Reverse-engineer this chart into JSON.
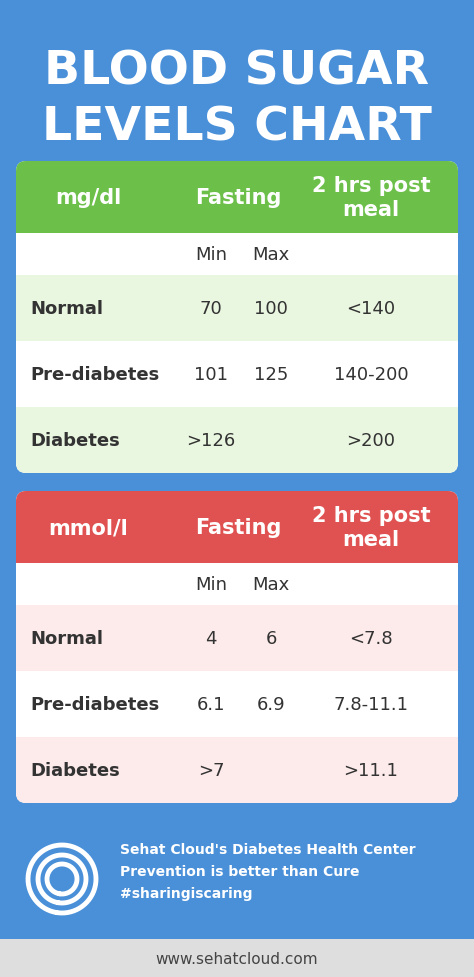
{
  "bg_color": "#4A90D9",
  "title_line1": "BLOOD SUGAR",
  "title_line2": "LEVELS CHART",
  "title_color": "#FFFFFF",
  "title_fontsize": 34,
  "table1_header_bg": "#6CC04A",
  "table2_header_bg": "#E05252",
  "table1_row_colors": [
    "#EAF7E0",
    "#FFFFFF"
  ],
  "table2_row_colors": [
    "#FDEAEA",
    "#FFFFFF"
  ],
  "table1": {
    "unit": "mg/dl",
    "col2": "Fasting",
    "col3": "2 hrs post\nmeal",
    "rows": [
      [
        "Normal",
        "70",
        "100",
        "<140"
      ],
      [
        "Pre-diabetes",
        "101",
        "125",
        "140-200"
      ],
      [
        "Diabetes",
        ">126",
        "",
        ">200"
      ]
    ]
  },
  "table2": {
    "unit": "mmol/l",
    "col2": "Fasting",
    "col3": "2 hrs post\nmeal",
    "rows": [
      [
        "Normal",
        "4",
        "6",
        "<7.8"
      ],
      [
        "Pre-diabetes",
        "6.1",
        "6.9",
        "7.8-11.1"
      ],
      [
        "Diabetes",
        ">7",
        "",
        ">11.1"
      ]
    ]
  },
  "footer_text1": "Sehat Cloud's Diabetes Health Center",
  "footer_text2": "Prevention is better than Cure",
  "footer_text3": "#sharingiscaring",
  "footer_url": "www.sehatcloud.com",
  "header_text_color": "#FFFFFF",
  "cell_text_color": "#333333",
  "url_bar_color": "#DEDEDE",
  "url_text_color": "#444444"
}
